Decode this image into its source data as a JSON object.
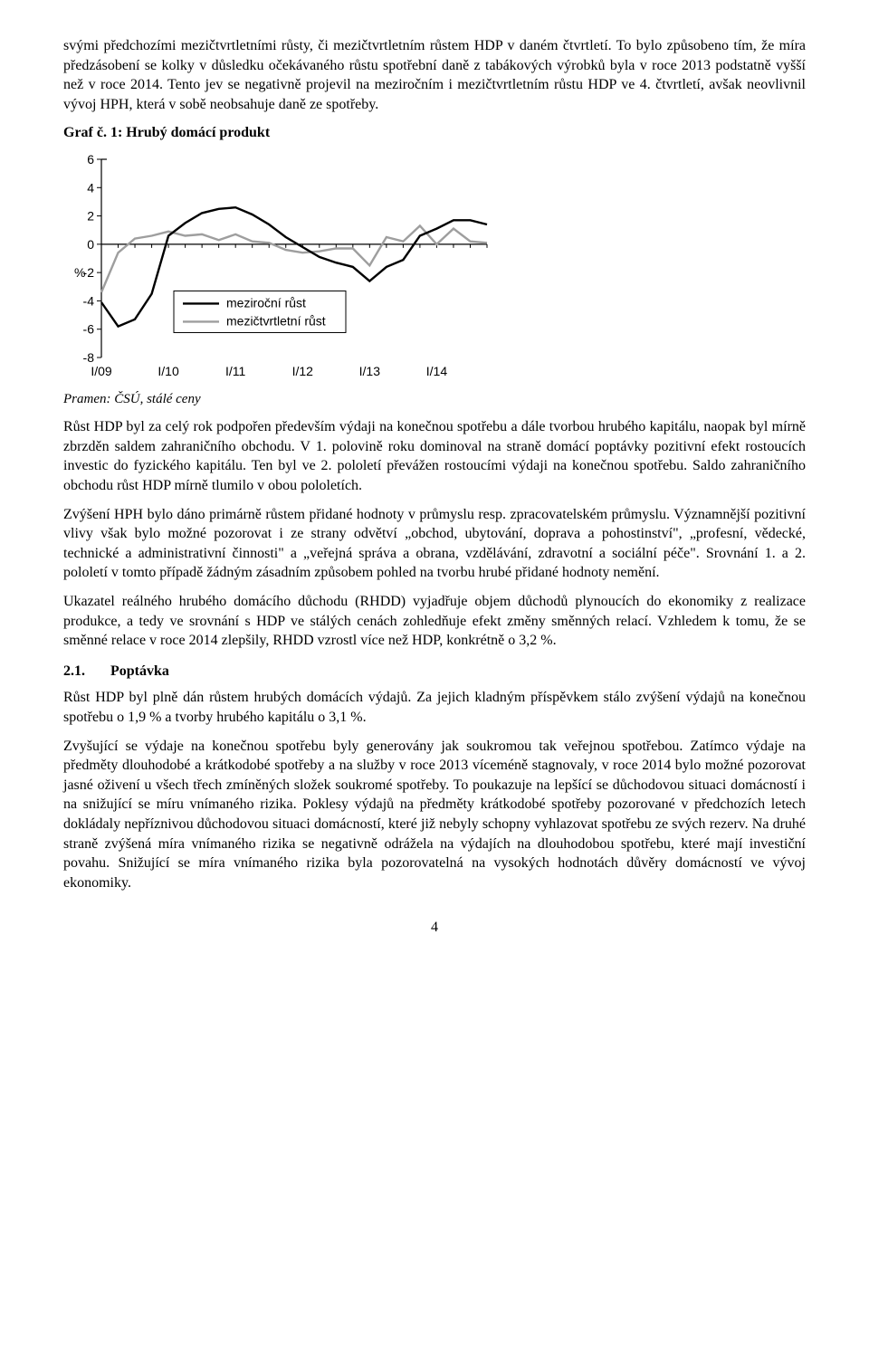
{
  "paragraphs": {
    "p1": "svými předchozími mezičtvrtletními růsty, či mezičtvrtletním růstem HDP v daném čtvrtletí. To bylo způsobeno tím, že míra předzásobení se kolky v důsledku očekávaného růstu spotřební daně z tabákových výrobků byla v roce 2013 podstatně vyšší než v roce 2014. Tento jev se negativně projevil na meziročním i mezičtvrtletním růstu HDP ve 4. čtvrtletí, avšak neovlivnil vývoj HPH, která v sobě neobsahuje daně ze spotřeby.",
    "p2": "Růst HDP byl za celý rok podpořen především výdaji na konečnou spotřebu a dále tvorbou hrubého kapitálu, naopak byl mírně zbrzděn saldem zahraničního obchodu. V 1. polovině roku dominoval na straně domácí poptávky pozitivní efekt rostoucích investic do fyzického kapitálu. Ten byl ve 2. pololetí převážen rostoucími výdaji na konečnou spotřebu. Saldo zahraničního obchodu růst HDP mírně tlumilo v obou pololetích.",
    "p3": "Zvýšení HPH bylo dáno primárně růstem přidané hodnoty v průmyslu resp. zpracovatelském průmyslu. Významnější pozitivní vlivy však bylo možné pozorovat i ze strany odvětví „obchod, ubytování, doprava a pohostinství\", „profesní, vědecké, technické a administrativní činnosti\" a „veřejná správa a obrana, vzdělávání, zdravotní a sociální péče\". Srovnání 1. a 2. pololetí v tomto případě žádným zásadním způsobem pohled na tvorbu hrubé přidané hodnoty nemění.",
    "p4": "Ukazatel reálného hrubého domácího důchodu (RHDD) vyjadřuje objem důchodů plynoucích do ekonomiky z realizace produkce, a tedy ve srovnání s HDP ve stálých cenách zohledňuje efekt změny směnných relací. Vzhledem k tomu, že se směnné relace v roce 2014 zlepšily, RHDD vzrostl více než HDP, konkrétně o 3,2 %.",
    "p5": "Růst HDP byl plně dán růstem hrubých domácích výdajů. Za jejich kladným příspěvkem stálo zvýšení výdajů na konečnou spotřebu o 1,9 % a tvorby hrubého kapitálu o 3,1 %.",
    "p6": "Zvyšující se výdaje na konečnou spotřebu byly generovány jak soukromou tak veřejnou spotřebou. Zatímco výdaje na předměty dlouhodobé a krátkodobé spotřeby a na služby v roce 2013 víceméně stagnovaly, v roce 2014 bylo možné pozorovat jasné oživení u všech třech zmíněných složek soukromé spotřeby. To poukazuje na lepšící se důchodovou situaci domácností i na snižující se míru vnímaného rizika. Poklesy výdajů na předměty krátkodobé spotřeby pozorované v předchozích letech dokládaly nepříznivou důchodovou situaci domácností, které již nebyly schopny vyhlazovat spotřebu ze svých rezerv. Na druhé straně zvýšená míra vnímaného rizika se negativně odrážela na výdajích na dlouhodobou spotřebu, které mají investiční povahu. Snižující se míra vnímaného rizika byla pozorovatelná na vysokých hodnotách důvěry domácností ve vývoj ekonomiky."
  },
  "chart": {
    "title": "Graf č. 1: Hrubý domácí produkt",
    "source": "Pramen: ČSÚ, stálé ceny",
    "ylabel": "%",
    "ylim": [
      -8,
      6
    ],
    "ytick_step": 2,
    "xticks": [
      "I/09",
      "I/10",
      "I/11",
      "I/12",
      "I/13",
      "I/14"
    ],
    "xtick_positions": [
      0,
      4,
      8,
      12,
      16,
      20
    ],
    "x_count": 24,
    "legend": {
      "a": "meziroční růst",
      "b": "mezičtvrtletní růst"
    },
    "colors": {
      "series_a": "#000000",
      "series_b": "#9e9e9e",
      "axis": "#000000",
      "background": "#ffffff"
    },
    "line_width": 2.4,
    "series_a": [
      -4.1,
      -5.8,
      -5.3,
      -3.5,
      0.6,
      1.5,
      2.2,
      2.5,
      2.6,
      2.1,
      1.4,
      0.5,
      -0.2,
      -0.9,
      -1.3,
      -1.6,
      -2.6,
      -1.6,
      -1.1,
      0.6,
      1.1,
      1.7,
      1.7,
      1.4
    ],
    "series_b": [
      -3.4,
      -0.6,
      0.4,
      0.6,
      0.9,
      0.6,
      0.7,
      0.3,
      0.7,
      0.2,
      0.1,
      -0.4,
      -0.6,
      -0.5,
      -0.3,
      -0.3,
      -1.5,
      0.5,
      0.2,
      1.3,
      0.0,
      1.1,
      0.2,
      0.1
    ]
  },
  "section": {
    "num": "2.1.",
    "title": "Poptávka"
  },
  "page_number": "4"
}
